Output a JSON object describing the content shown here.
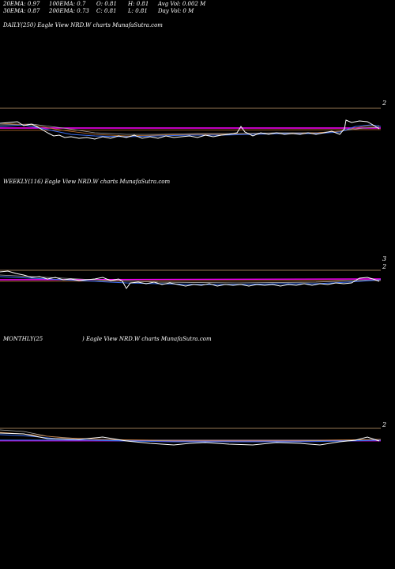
{
  "stats": {
    "ema20": "20EMA: 0.97",
    "ema100": "100EMA: 0.7",
    "open": "O: 0.81",
    "high": "H: 0.81",
    "avgvol": "Avg Vol: 0.002  M",
    "ema30": "30EMA: 0.87",
    "ema200": "200EMA: 0.73",
    "close": "C: 0.81",
    "low": "L: 0.81",
    "dayvol": "Day Vol: 0  M"
  },
  "panels": {
    "daily": {
      "title": "DAILY(250) Eagle   View  NRD.W charts MunafaSutra.com",
      "axis_label": "2"
    },
    "weekly": {
      "title": "WEEKLY(116) Eagle   View  NRD.W charts MunafaSutra.com",
      "axis_label_top": "3",
      "axis_label": "2"
    },
    "monthly": {
      "title_left": "MONTHLY(25",
      "title_right": ") Eagle   View  NRD.W charts MunafaSutra.com",
      "axis_label": "2"
    }
  },
  "colors": {
    "background": "#000000",
    "price": "#ffffff",
    "ema_blue": "#3a6df0",
    "ema_orange": "#c87832",
    "ema_magenta": "#ff00ff",
    "ema_gray": "#aaaaaa",
    "ref_line": "#c8a070"
  }
}
